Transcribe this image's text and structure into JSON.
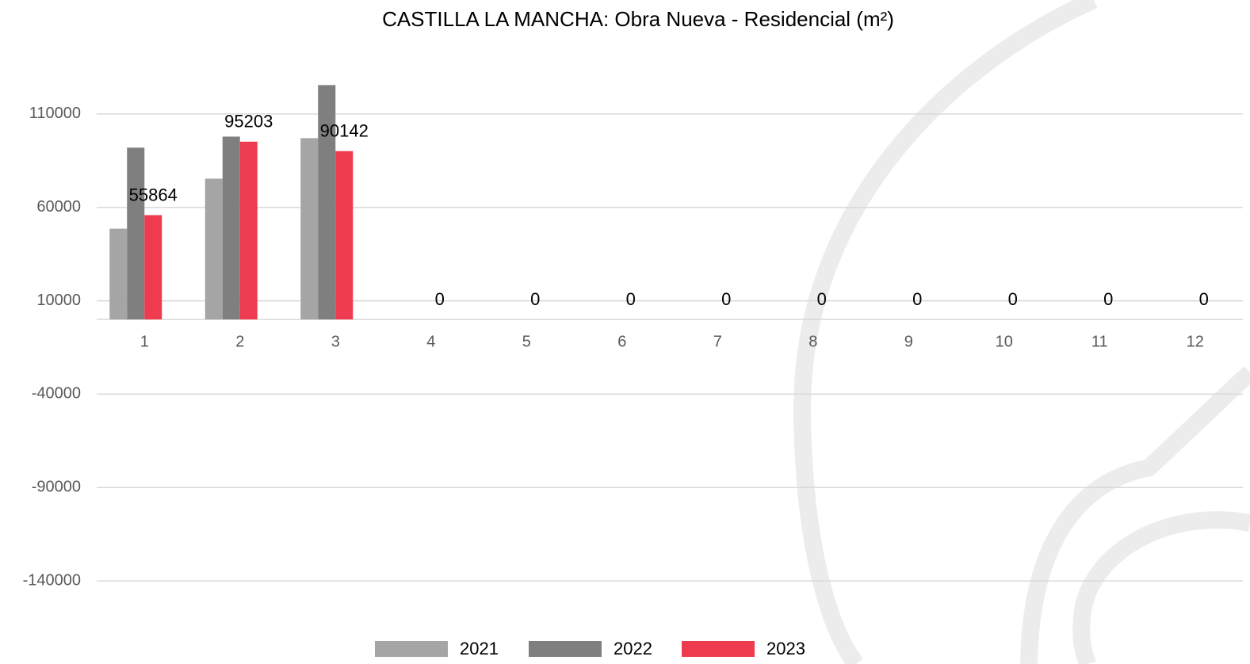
{
  "chart_data": {
    "type": "bar",
    "title": "CASTILLA LA MANCHA: Obra Nueva - Residencial (m²)",
    "categories": [
      "1",
      "2",
      "3",
      "4",
      "5",
      "6",
      "7",
      "8",
      "9",
      "10",
      "11",
      "12"
    ],
    "series": [
      {
        "name": "2021",
        "color": "#a5a5a5",
        "values": [
          48600,
          75400,
          97100,
          null,
          null,
          null,
          null,
          null,
          null,
          null,
          null,
          null
        ]
      },
      {
        "name": "2022",
        "color": "#7f7f7f",
        "values": [
          92000,
          97900,
          125500,
          null,
          null,
          null,
          null,
          null,
          null,
          null,
          null,
          null
        ]
      },
      {
        "name": "2023",
        "color": "#ef3b4f",
        "values": [
          55864,
          95203,
          90142,
          0,
          0,
          0,
          0,
          0,
          0,
          0,
          0,
          0
        ],
        "data_labels": true
      }
    ],
    "ylim": [
      -165000,
      135000
    ],
    "yticks": [
      -140000,
      -90000,
      -40000,
      10000,
      60000,
      110000
    ],
    "grid": true,
    "legend": "bottom"
  }
}
